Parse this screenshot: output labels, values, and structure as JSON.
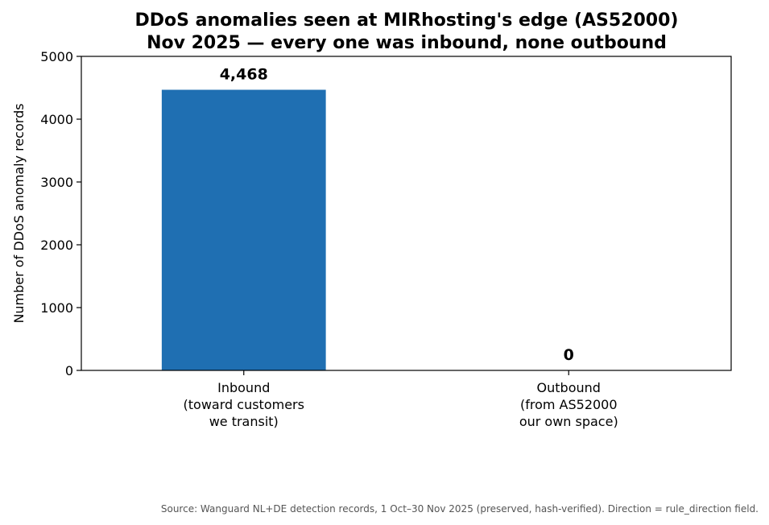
{
  "chart_data": {
    "type": "bar",
    "title_lines": [
      "DDoS anomalies seen at MIRhosting's edge (AS52000)",
      "Nov 2025 — every one was inbound, none outbound"
    ],
    "categories": [
      [
        "Inbound",
        "(toward customers",
        "we transit)"
      ],
      [
        "Outbound",
        "(from AS52000",
        "our own space)"
      ]
    ],
    "values": [
      4468,
      0
    ],
    "value_labels": [
      "4,468",
      "0"
    ],
    "ylabel": "Number of DDoS anomaly records",
    "xlabel": "",
    "ylim": [
      0,
      5000
    ],
    "yticks": [
      0,
      1000,
      2000,
      3000,
      4000,
      5000
    ],
    "grid": false,
    "legend": "none",
    "bar_color": "#1f6fb2"
  },
  "source_note": "Source: Wanguard NL+DE detection records, 1 Oct–30 Nov 2025 (preserved, hash-verified). Direction = rule_direction field."
}
